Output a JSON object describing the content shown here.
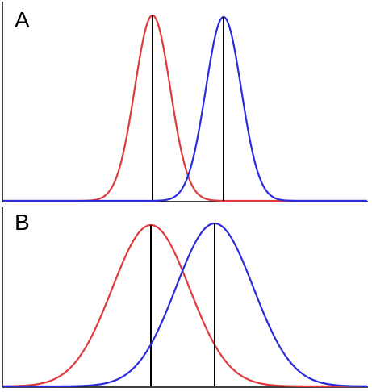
{
  "panels": [
    {
      "label": "A"
    },
    {
      "label": "B"
    }
  ]
}
